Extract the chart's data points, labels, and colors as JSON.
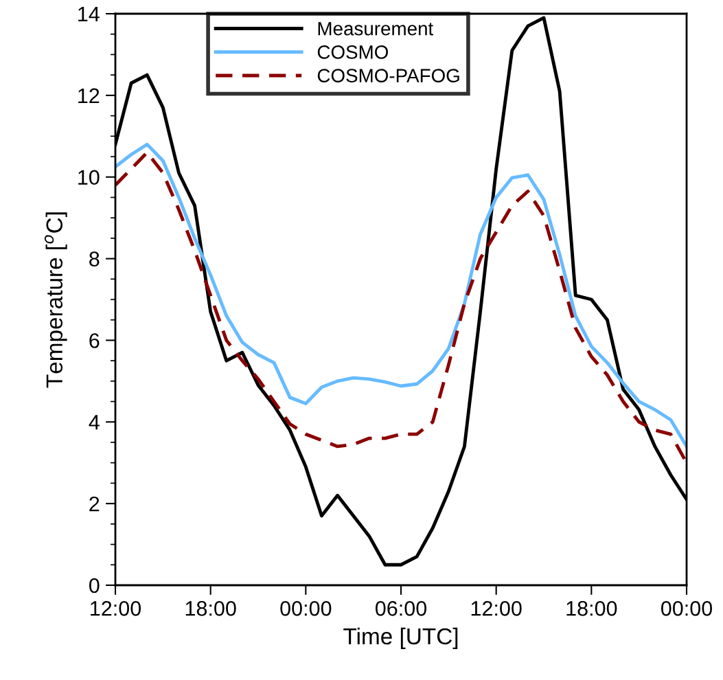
{
  "chart_data": {
    "type": "line",
    "xlabel": "Time [UTC]",
    "ylabel": "Temperature [$^{o}$C]",
    "categories": [
      "12:00",
      null,
      null,
      null,
      null,
      null,
      "18:00",
      null,
      null,
      null,
      null,
      null,
      "00:00",
      null,
      null,
      null,
      null,
      null,
      "06:00",
      null,
      null,
      null,
      null,
      null,
      "12:00",
      null,
      null,
      null,
      null,
      null,
      "18:00",
      null,
      null,
      null,
      null,
      null,
      "00:00"
    ],
    "ylim": [
      0,
      14
    ],
    "yticks": [
      0,
      2,
      4,
      6,
      8,
      10,
      12,
      14
    ],
    "grid": false,
    "legend": "top",
    "series": [
      {
        "name": "Measurement",
        "color": "#000000",
        "line_style": "solid",
        "values": [
          10.8,
          12.3,
          12.5,
          11.7,
          10.1,
          9.3,
          6.7,
          5.5,
          5.7,
          4.9,
          4.4,
          3.8,
          2.9,
          1.7,
          2.2,
          1.7,
          1.2,
          0.5,
          0.5,
          0.7,
          1.4,
          2.3,
          3.4,
          6.7,
          10.2,
          13.1,
          13.7,
          13.9,
          12.1,
          7.1,
          7.0,
          6.5,
          4.8,
          4.3,
          3.4,
          2.7,
          2.1
        ]
      },
      {
        "name": "COSMO",
        "color": "#66bbff",
        "line_style": "solid",
        "values": [
          10.25,
          10.55,
          10.8,
          10.4,
          9.5,
          8.5,
          7.6,
          6.6,
          5.95,
          5.65,
          5.45,
          4.6,
          4.45,
          4.85,
          5.0,
          5.08,
          5.05,
          4.98,
          4.88,
          4.93,
          5.25,
          5.8,
          6.9,
          8.6,
          9.5,
          9.98,
          10.05,
          9.45,
          8.1,
          6.6,
          5.85,
          5.45,
          4.95,
          4.5,
          4.3,
          4.05,
          3.4
        ]
      },
      {
        "name": "COSMO-PAFOG",
        "color": "#8b0000",
        "line_style": "dashed",
        "values": [
          9.8,
          10.2,
          10.6,
          10.1,
          9.2,
          8.2,
          7.1,
          6.0,
          5.5,
          5.05,
          4.5,
          3.95,
          3.7,
          3.55,
          3.4,
          3.45,
          3.6,
          3.6,
          3.7,
          3.7,
          4.0,
          5.4,
          6.9,
          8.0,
          8.65,
          9.3,
          9.65,
          9.05,
          7.7,
          6.3,
          5.6,
          5.15,
          4.5,
          4.0,
          3.8,
          3.7,
          3.0
        ]
      }
    ]
  }
}
